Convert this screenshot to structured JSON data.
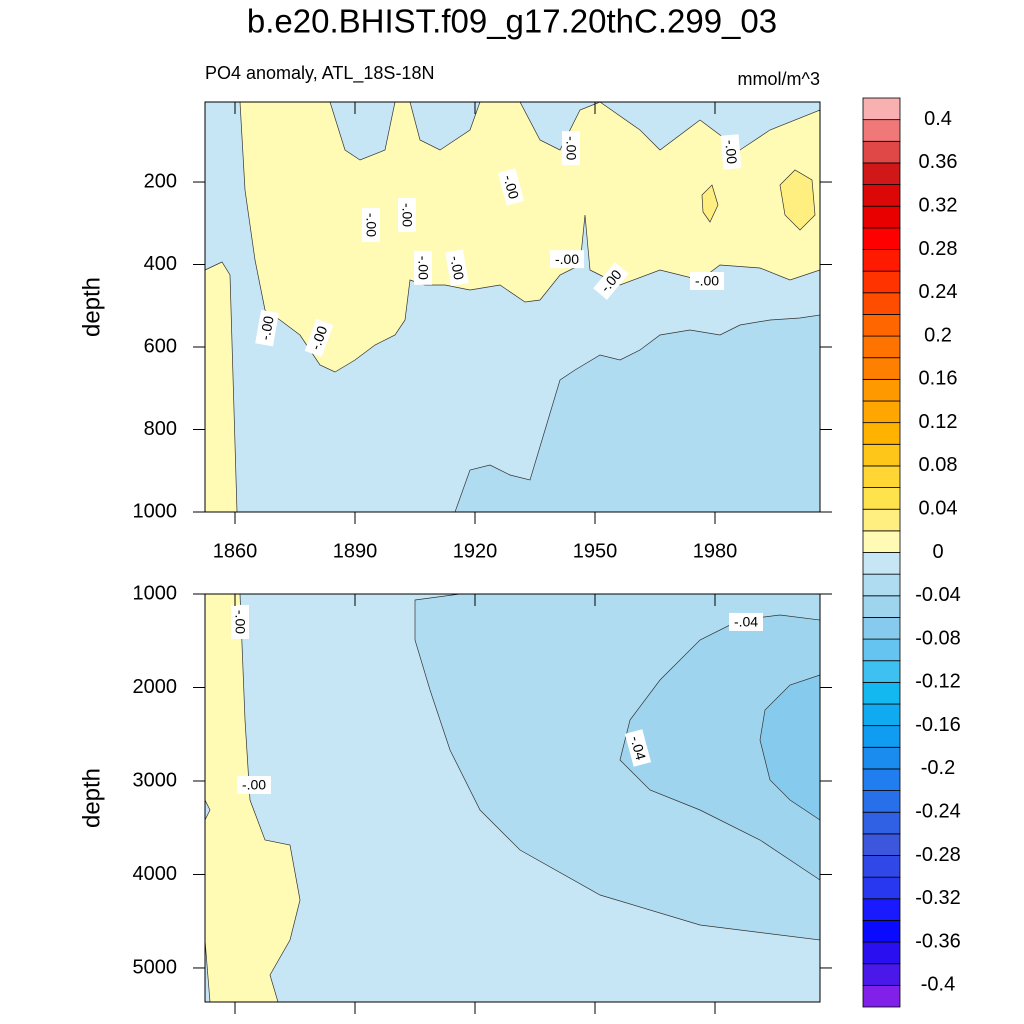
{
  "title": "b.e20.BHIST.f09_g17.20thC.299_03",
  "chart_data": [
    {
      "type": "contour",
      "subtitle": "PO4 anomaly, ATL_18S-18N",
      "units": "mmol/m^3",
      "y_label": "depth",
      "xlim": [
        1852.5,
        2006.25
      ],
      "xticks": [
        1860,
        1890,
        1920,
        1950,
        1980
      ],
      "xtick_labels": true,
      "ylim": [
        6,
        1000
      ],
      "y_reversed": true,
      "yticks": [
        200,
        400,
        600,
        800,
        1000
      ],
      "contour_labels": [
        {
          "text": "-.00",
          "x": 1868,
          "y": 554
        },
        {
          "text": "-.00",
          "x": 1881,
          "y": 578
        },
        {
          "text": "-.00",
          "x": 1894,
          "y": 304
        },
        {
          "text": "-.00",
          "x": 1903,
          "y": 280
        },
        {
          "text": "-.00",
          "x": 1907,
          "y": 408
        },
        {
          "text": "-.00",
          "x": 1915.5,
          "y": 408
        },
        {
          "text": "-.00",
          "x": 1929,
          "y": 212
        },
        {
          "text": "-.00",
          "x": 1943,
          "y": 387
        },
        {
          "text": "-.00",
          "x": 1944,
          "y": 118
        },
        {
          "text": "-.00",
          "x": 1954,
          "y": 440
        },
        {
          "text": "-.00",
          "x": 1978,
          "y": 440
        },
        {
          "text": "-.00",
          "x": 1984,
          "y": 127
        }
      ]
    },
    {
      "type": "contour",
      "y_label": "depth",
      "xlim": [
        1852.5,
        2006.25
      ],
      "xticks": [
        1860,
        1890,
        1920,
        1950,
        1980
      ],
      "xtick_labels": false,
      "ylim": [
        1000,
        5364
      ],
      "y_reversed": true,
      "yticks": [
        1000,
        2000,
        3000,
        4000,
        5000
      ],
      "contour_labels": [
        {
          "text": "-.00",
          "x": 1861.25,
          "y": 1299
        },
        {
          "text": "-.00",
          "x": 1864.75,
          "y": 3043
        },
        {
          "text": "-.04",
          "x": 1987.75,
          "y": 1299
        },
        {
          "text": "-.04",
          "x": 1960.75,
          "y": 2647
        }
      ]
    },
    {
      "type": "colorbar",
      "levels": [
        -0.42,
        -0.4,
        -0.38,
        -0.36,
        -0.34,
        -0.32,
        -0.3,
        -0.28,
        -0.26,
        -0.24,
        -0.22,
        -0.2,
        -0.18,
        -0.16,
        -0.14,
        -0.12,
        -0.1,
        -0.08,
        -0.06,
        -0.04,
        -0.02,
        0,
        0.02,
        0.04,
        0.06,
        0.08,
        0.1,
        0.12,
        0.14,
        0.16,
        0.18,
        0.2,
        0.22,
        0.24,
        0.26,
        0.28,
        0.3,
        0.32,
        0.34,
        0.36,
        0.38,
        0.4,
        0.42
      ],
      "colors": [
        "#8020e8",
        "#4a18e8",
        "#2a10f0",
        "#0a0aff",
        "#1a1aff",
        "#2838f0",
        "#3048e8",
        "#3c56dc",
        "#3060e4",
        "#2870ea",
        "#207ef0",
        "#1a8cf0",
        "#109cf0",
        "#10aaf0",
        "#14b8f0",
        "#3ec0f0",
        "#66c4f0",
        "#86cbee",
        "#9ed4ee",
        "#b0dcf2",
        "#c6e6f5",
        "#fffab4",
        "#ffef80",
        "#ffe34d",
        "#ffd633",
        "#ffc61a",
        "#ffb300",
        "#ffa600",
        "#ff9900",
        "#ff8000",
        "#ff7300",
        "#ff6600",
        "#ff4d00",
        "#ff3300",
        "#ff1a00",
        "#ff0000",
        "#e80000",
        "#dc0808",
        "#d01818",
        "#e04848",
        "#f07878",
        "#f8b0b0"
      ]
    }
  ]
}
